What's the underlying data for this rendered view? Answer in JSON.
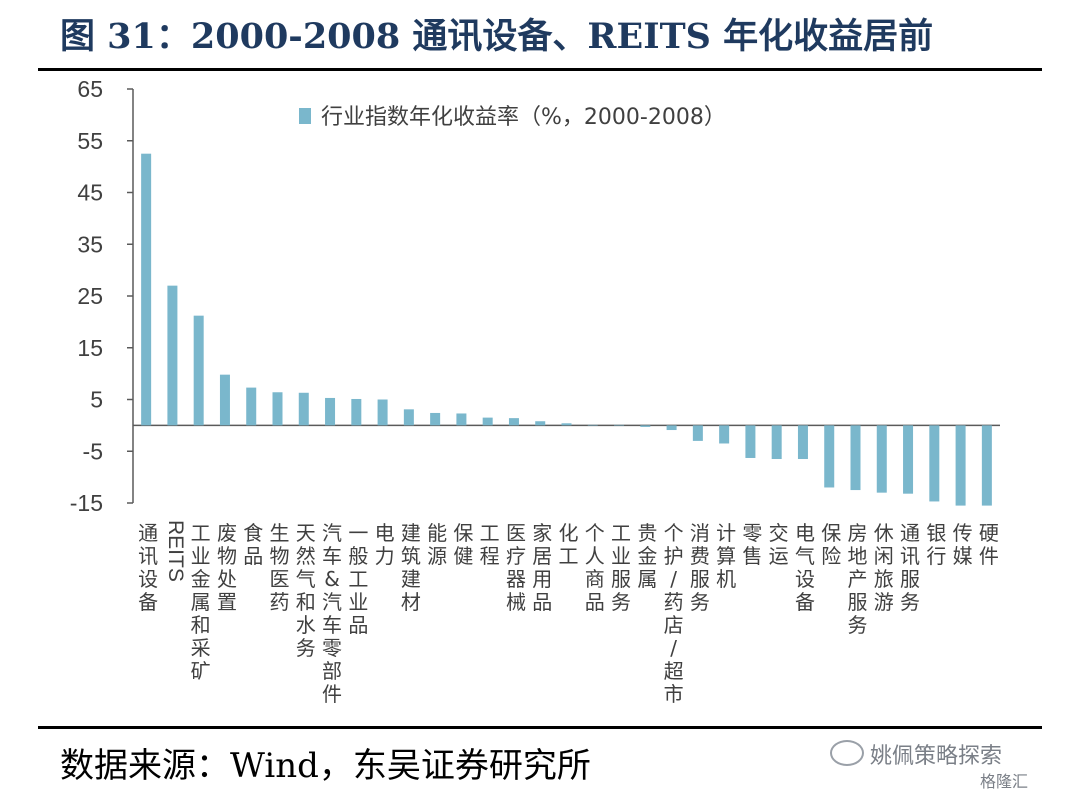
{
  "title": "图 31：2000-2008 通讯设备、REITS 年化收益居前",
  "source": "数据来源：Wind，东吴证券研究所",
  "watermark": {
    "main": "姚佩策略探索",
    "sub": "格隆汇"
  },
  "colors": {
    "bar": "#7ab7cc",
    "axis": "#5a5a5a",
    "text": "#404040"
  },
  "chart_data": {
    "type": "bar",
    "legend": "行业指数年化收益率（%，2000-2008）",
    "legend_position": "top-left",
    "ylim": [
      -15,
      65
    ],
    "yticks": [
      65,
      55,
      45,
      35,
      25,
      15,
      5,
      -5,
      -15
    ],
    "yticklabels": [
      "65",
      "55",
      "45",
      "35",
      "25",
      "15",
      "5",
      "-5",
      "-15"
    ],
    "grid": false,
    "categories": [
      "通讯设备",
      "REITS",
      "工业金属和采矿",
      "废物处置",
      "食品",
      "生物医药",
      "天然气和水务",
      "汽车&汽车零部件",
      "一般工业品",
      "电力",
      "建筑建材",
      "能源",
      "保健",
      "工程",
      "医疗器械",
      "家居用品",
      "化工",
      "个人商品",
      "工业服务",
      "贵金属",
      "个护/药店/超市",
      "消费服务",
      "计算机",
      "零售",
      "交运",
      "电气设备",
      "保险",
      "房地产服务",
      "休闲旅游",
      "通讯服务",
      "银行",
      "传媒",
      "硬件"
    ],
    "values": [
      52.5,
      27.0,
      21.2,
      9.8,
      7.3,
      6.4,
      6.3,
      5.3,
      5.1,
      5.0,
      3.1,
      2.4,
      2.3,
      1.5,
      1.4,
      0.8,
      0.4,
      0.1,
      0.1,
      -0.3,
      -0.9,
      -3.0,
      -3.5,
      -6.3,
      -6.5,
      -6.5,
      -12.0,
      -12.5,
      -13.0,
      -13.2,
      -14.7,
      -15.5,
      -15.5
    ]
  }
}
